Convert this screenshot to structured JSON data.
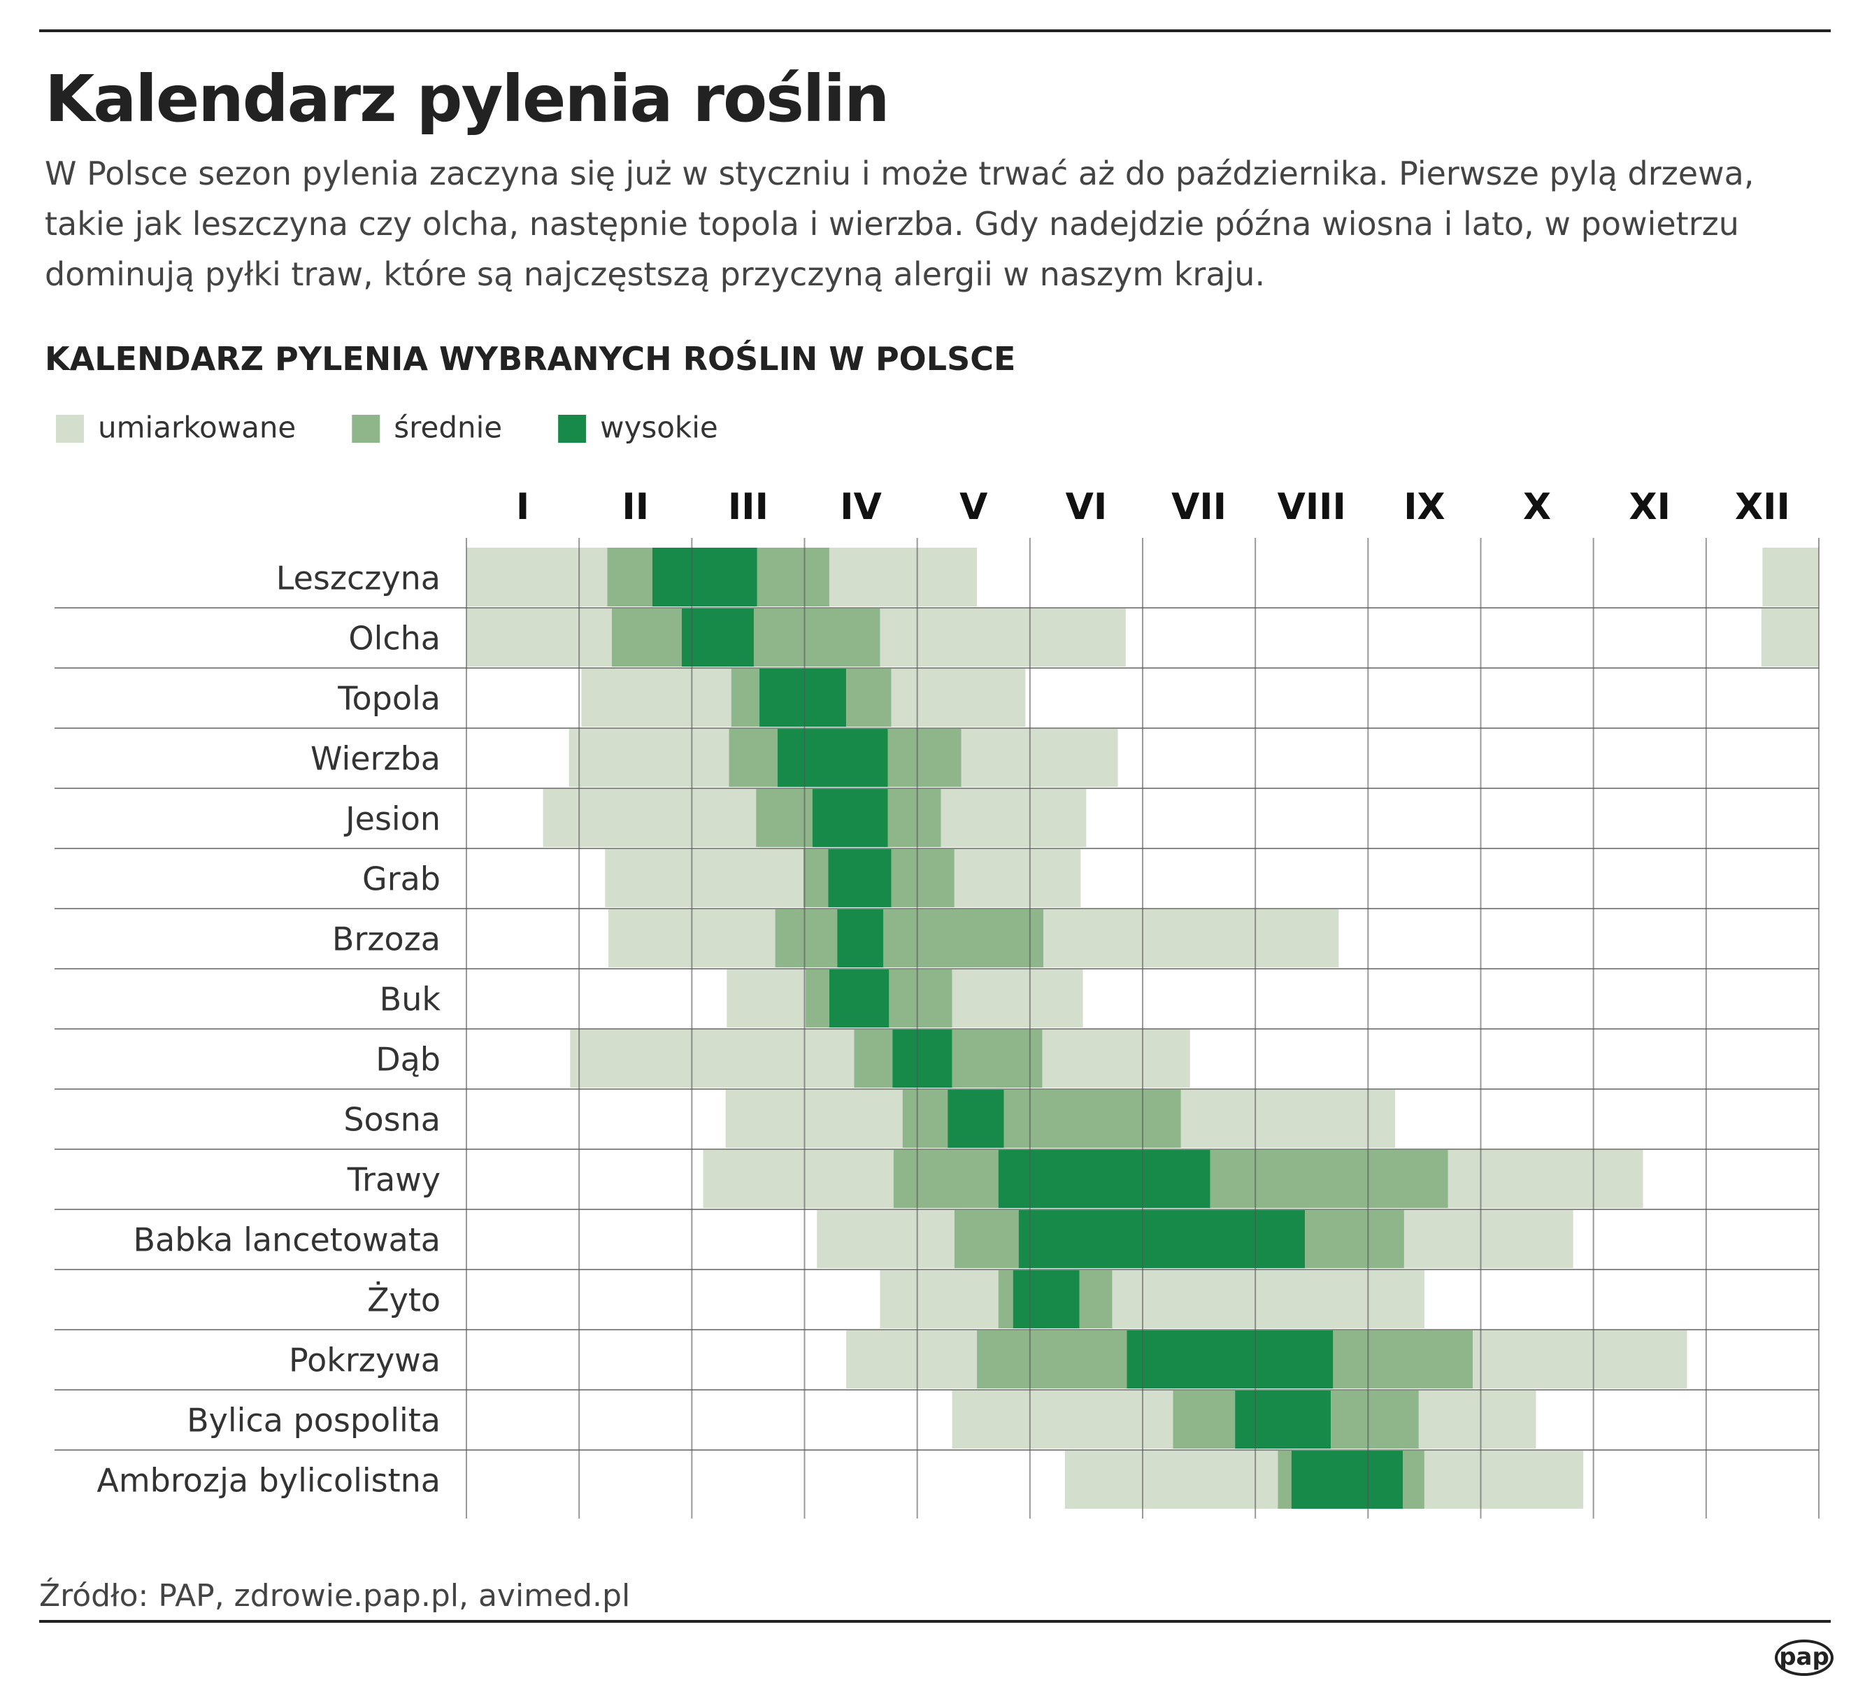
{
  "title": "Kalendarz pylenia roślin",
  "subtitle": "W Polsce sezon pylenia zaczyna się już w styczniu i może trwać aż do października. Pierwsze pylą drzewa, takie jak leszczyna czy olcha, następnie topola i wierzba. Gdy nadejdzie późna wiosna i lato, w powietrzu dominują pyłki traw, które są najczęstszą przyczyną alergii w naszym kraju.",
  "source": "Źródło: PAP, zdrowie.pap.pl, avimed.pl",
  "logo": "pap",
  "chart_data": {
    "type": "gantt",
    "title": "KALENDARZ PYLENIA WYBRANYCH ROŚLIN W POLSCE",
    "legend": [
      {
        "name": "umiarkowane",
        "color": "#d3dfcc"
      },
      {
        "name": "średnie",
        "color": "#8fb58a"
      },
      {
        "name": "wysokie",
        "color": "#178a4a"
      }
    ],
    "months": [
      "I",
      "II",
      "III",
      "IV",
      "V",
      "VI",
      "VII",
      "VIII",
      "IX",
      "X",
      "XI",
      "XII"
    ],
    "xlim": [
      0,
      12
    ],
    "xticks": [
      0,
      1,
      2,
      3,
      4,
      5,
      6,
      7,
      8,
      9,
      10,
      11,
      12
    ],
    "rows": [
      {
        "name": "Leszczyna",
        "segments": [
          {
            "level": 0,
            "start": 0,
            "end": 1.25
          },
          {
            "level": 1,
            "start": 1.25,
            "end": 1.65
          },
          {
            "level": 2,
            "start": 1.65,
            "end": 2.58
          },
          {
            "level": 1,
            "start": 2.58,
            "end": 3.22
          },
          {
            "level": 0,
            "start": 3.22,
            "end": 4.53
          },
          {
            "level": 0,
            "start": 11.5,
            "end": 12
          }
        ]
      },
      {
        "name": "Olcha",
        "segments": [
          {
            "level": 0,
            "start": 0,
            "end": 1.29
          },
          {
            "level": 1,
            "start": 1.29,
            "end": 1.91
          },
          {
            "level": 2,
            "start": 1.91,
            "end": 2.55
          },
          {
            "level": 1,
            "start": 2.55,
            "end": 3.67
          },
          {
            "level": 0,
            "start": 3.67,
            "end": 5.85
          },
          {
            "level": 0,
            "start": 11.49,
            "end": 12
          }
        ]
      },
      {
        "name": "Topola",
        "segments": [
          {
            "level": 0,
            "start": 1.02,
            "end": 2.35
          },
          {
            "level": 1,
            "start": 2.35,
            "end": 2.6
          },
          {
            "level": 2,
            "start": 2.6,
            "end": 3.37
          },
          {
            "level": 1,
            "start": 3.37,
            "end": 3.77
          },
          {
            "level": 0,
            "start": 3.77,
            "end": 4.96
          }
        ]
      },
      {
        "name": "Wierzba",
        "segments": [
          {
            "level": 0,
            "start": 0.91,
            "end": 2.33
          },
          {
            "level": 1,
            "start": 2.33,
            "end": 2.76
          },
          {
            "level": 2,
            "start": 2.76,
            "end": 3.74
          },
          {
            "level": 1,
            "start": 3.74,
            "end": 4.39
          },
          {
            "level": 0,
            "start": 4.39,
            "end": 5.78
          }
        ]
      },
      {
        "name": "Jesion",
        "segments": [
          {
            "level": 0,
            "start": 0.68,
            "end": 2.57
          },
          {
            "level": 1,
            "start": 2.57,
            "end": 3.07
          },
          {
            "level": 2,
            "start": 3.07,
            "end": 3.74
          },
          {
            "level": 1,
            "start": 3.74,
            "end": 4.21
          },
          {
            "level": 0,
            "start": 4.21,
            "end": 5.5
          }
        ]
      },
      {
        "name": "Grab",
        "segments": [
          {
            "level": 0,
            "start": 1.23,
            "end": 2.99
          },
          {
            "level": 1,
            "start": 2.99,
            "end": 3.21
          },
          {
            "level": 2,
            "start": 3.21,
            "end": 3.77
          },
          {
            "level": 1,
            "start": 3.77,
            "end": 4.33
          },
          {
            "level": 0,
            "start": 4.33,
            "end": 5.45
          }
        ]
      },
      {
        "name": "Brzoza",
        "segments": [
          {
            "level": 0,
            "start": 1.26,
            "end": 2.74
          },
          {
            "level": 1,
            "start": 2.74,
            "end": 3.29
          },
          {
            "level": 2,
            "start": 3.29,
            "end": 3.7
          },
          {
            "level": 1,
            "start": 3.7,
            "end": 5.12
          },
          {
            "level": 0,
            "start": 5.12,
            "end": 7.74
          }
        ]
      },
      {
        "name": "Buk",
        "segments": [
          {
            "level": 0,
            "start": 2.31,
            "end": 3.01
          },
          {
            "level": 1,
            "start": 3.01,
            "end": 3.22
          },
          {
            "level": 2,
            "start": 3.22,
            "end": 3.75
          },
          {
            "level": 1,
            "start": 3.75,
            "end": 4.31
          },
          {
            "level": 0,
            "start": 4.31,
            "end": 5.47
          }
        ]
      },
      {
        "name": "Dąb",
        "segments": [
          {
            "level": 0,
            "start": 0.92,
            "end": 3.44
          },
          {
            "level": 1,
            "start": 3.44,
            "end": 3.78
          },
          {
            "level": 2,
            "start": 3.78,
            "end": 4.31
          },
          {
            "level": 1,
            "start": 4.31,
            "end": 5.11
          },
          {
            "level": 0,
            "start": 5.11,
            "end": 6.42
          }
        ]
      },
      {
        "name": "Sosna",
        "segments": [
          {
            "level": 0,
            "start": 2.3,
            "end": 3.87
          },
          {
            "level": 1,
            "start": 3.87,
            "end": 4.27
          },
          {
            "level": 2,
            "start": 4.27,
            "end": 4.77
          },
          {
            "level": 1,
            "start": 4.77,
            "end": 6.34
          },
          {
            "level": 0,
            "start": 6.34,
            "end": 8.24
          }
        ]
      },
      {
        "name": "Trawy",
        "segments": [
          {
            "level": 0,
            "start": 2.1,
            "end": 3.79
          },
          {
            "level": 1,
            "start": 3.79,
            "end": 4.72
          },
          {
            "level": 2,
            "start": 4.72,
            "end": 6.6
          },
          {
            "level": 1,
            "start": 6.6,
            "end": 8.71
          },
          {
            "level": 0,
            "start": 8.71,
            "end": 10.44
          }
        ]
      },
      {
        "name": "Babka lancetowata",
        "segments": [
          {
            "level": 0,
            "start": 3.11,
            "end": 4.33
          },
          {
            "level": 1,
            "start": 4.33,
            "end": 4.9
          },
          {
            "level": 2,
            "start": 4.9,
            "end": 7.44
          },
          {
            "level": 1,
            "start": 7.44,
            "end": 8.32
          },
          {
            "level": 0,
            "start": 8.32,
            "end": 9.82
          }
        ]
      },
      {
        "name": "Żyto",
        "segments": [
          {
            "level": 0,
            "start": 3.67,
            "end": 4.72
          },
          {
            "level": 1,
            "start": 4.72,
            "end": 4.85
          },
          {
            "level": 2,
            "start": 4.85,
            "end": 5.44
          },
          {
            "level": 1,
            "start": 5.44,
            "end": 5.73
          },
          {
            "level": 0,
            "start": 5.73,
            "end": 8.5
          }
        ]
      },
      {
        "name": "Pokrzywa",
        "segments": [
          {
            "level": 0,
            "start": 3.37,
            "end": 4.53
          },
          {
            "level": 1,
            "start": 4.53,
            "end": 5.86
          },
          {
            "level": 2,
            "start": 5.86,
            "end": 7.69
          },
          {
            "level": 1,
            "start": 7.69,
            "end": 8.93
          },
          {
            "level": 0,
            "start": 8.93,
            "end": 10.83
          }
        ]
      },
      {
        "name": "Bylica pospolita",
        "segments": [
          {
            "level": 0,
            "start": 4.31,
            "end": 6.27
          },
          {
            "level": 1,
            "start": 6.27,
            "end": 6.82
          },
          {
            "level": 2,
            "start": 6.82,
            "end": 7.67
          },
          {
            "level": 1,
            "start": 7.67,
            "end": 8.45
          },
          {
            "level": 0,
            "start": 8.45,
            "end": 9.49
          }
        ]
      },
      {
        "name": "Ambrozja bylicolistna",
        "segments": [
          {
            "level": 0,
            "start": 5.31,
            "end": 7.2
          },
          {
            "level": 1,
            "start": 7.2,
            "end": 7.32
          },
          {
            "level": 2,
            "start": 7.32,
            "end": 8.31
          },
          {
            "level": 1,
            "start": 8.31,
            "end": 8.5
          },
          {
            "level": 0,
            "start": 8.5,
            "end": 9.91
          }
        ]
      }
    ]
  }
}
